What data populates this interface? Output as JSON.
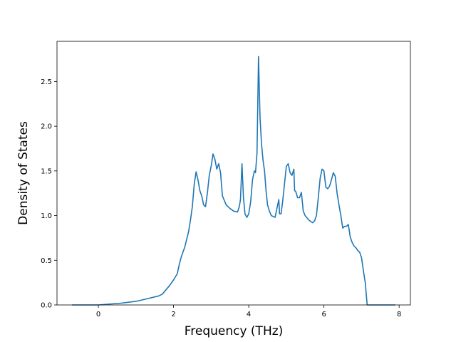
{
  "chart_data": {
    "type": "line",
    "title": "",
    "xlabel": "Frequency (THz)",
    "ylabel": "Density of States",
    "xlim": [
      -1.1,
      8.3
    ],
    "ylim": [
      0.0,
      2.95
    ],
    "xticks": [
      0,
      2,
      4,
      6,
      8
    ],
    "xtick_labels": [
      "0",
      "2",
      "4",
      "6",
      "8"
    ],
    "yticks": [
      0.0,
      0.5,
      1.0,
      1.5,
      2.0,
      2.5
    ],
    "ytick_labels": [
      "0.0",
      "0.5",
      "1.0",
      "1.5",
      "2.0",
      "2.5"
    ],
    "grid": false,
    "line_color": "#1f77b4",
    "series": [
      {
        "x": [
          -0.7,
          0.0,
          0.3,
          0.6,
          1.0,
          1.3,
          1.6,
          1.7,
          1.8,
          1.9,
          2.0,
          2.1,
          2.15,
          2.2,
          2.3,
          2.4,
          2.45,
          2.5,
          2.55,
          2.6,
          2.65,
          2.7,
          2.75,
          2.8,
          2.85,
          2.9,
          2.95,
          3.0,
          3.05,
          3.1,
          3.15,
          3.2,
          3.25,
          3.3,
          3.4,
          3.5,
          3.6,
          3.7,
          3.75,
          3.78,
          3.82,
          3.86,
          3.9,
          3.95,
          4.0,
          4.05,
          4.1,
          4.15,
          4.18,
          4.22,
          4.26,
          4.3,
          4.34,
          4.38,
          4.42,
          4.46,
          4.5,
          4.55,
          4.6,
          4.7,
          4.8,
          4.82,
          4.86,
          4.9,
          4.95,
          5.0,
          5.05,
          5.1,
          5.15,
          5.2,
          5.22,
          5.25,
          5.3,
          5.35,
          5.4,
          5.45,
          5.5,
          5.6,
          5.7,
          5.75,
          5.8,
          5.85,
          5.9,
          5.95,
          6.0,
          6.05,
          6.1,
          6.15,
          6.2,
          6.25,
          6.3,
          6.35,
          6.4,
          6.45,
          6.5,
          6.55,
          6.6,
          6.65,
          6.7,
          6.75,
          6.8,
          6.85,
          6.9,
          6.95,
          7.0,
          7.05,
          7.1,
          7.15,
          7.18,
          7.3,
          7.9
        ],
        "y": [
          0.0,
          0.0,
          0.01,
          0.02,
          0.04,
          0.07,
          0.1,
          0.12,
          0.17,
          0.22,
          0.28,
          0.35,
          0.45,
          0.53,
          0.65,
          0.82,
          0.95,
          1.1,
          1.35,
          1.49,
          1.4,
          1.28,
          1.22,
          1.12,
          1.1,
          1.25,
          1.45,
          1.55,
          1.69,
          1.63,
          1.52,
          1.58,
          1.48,
          1.22,
          1.12,
          1.08,
          1.05,
          1.04,
          1.1,
          1.18,
          1.58,
          1.2,
          1.02,
          0.98,
          1.02,
          1.15,
          1.4,
          1.5,
          1.48,
          1.7,
          2.78,
          2.1,
          1.8,
          1.62,
          1.5,
          1.28,
          1.12,
          1.05,
          1.0,
          0.98,
          1.18,
          1.02,
          1.02,
          1.15,
          1.35,
          1.55,
          1.58,
          1.48,
          1.45,
          1.52,
          1.28,
          1.27,
          1.2,
          1.2,
          1.26,
          1.05,
          1.0,
          0.95,
          0.92,
          0.94,
          1.0,
          1.2,
          1.42,
          1.52,
          1.5,
          1.32,
          1.3,
          1.33,
          1.4,
          1.48,
          1.44,
          1.25,
          1.12,
          1.0,
          0.86,
          0.88,
          0.88,
          0.9,
          0.76,
          0.7,
          0.66,
          0.64,
          0.61,
          0.59,
          0.53,
          0.38,
          0.25,
          0.0,
          0.0,
          0.0,
          0.0
        ]
      }
    ]
  }
}
